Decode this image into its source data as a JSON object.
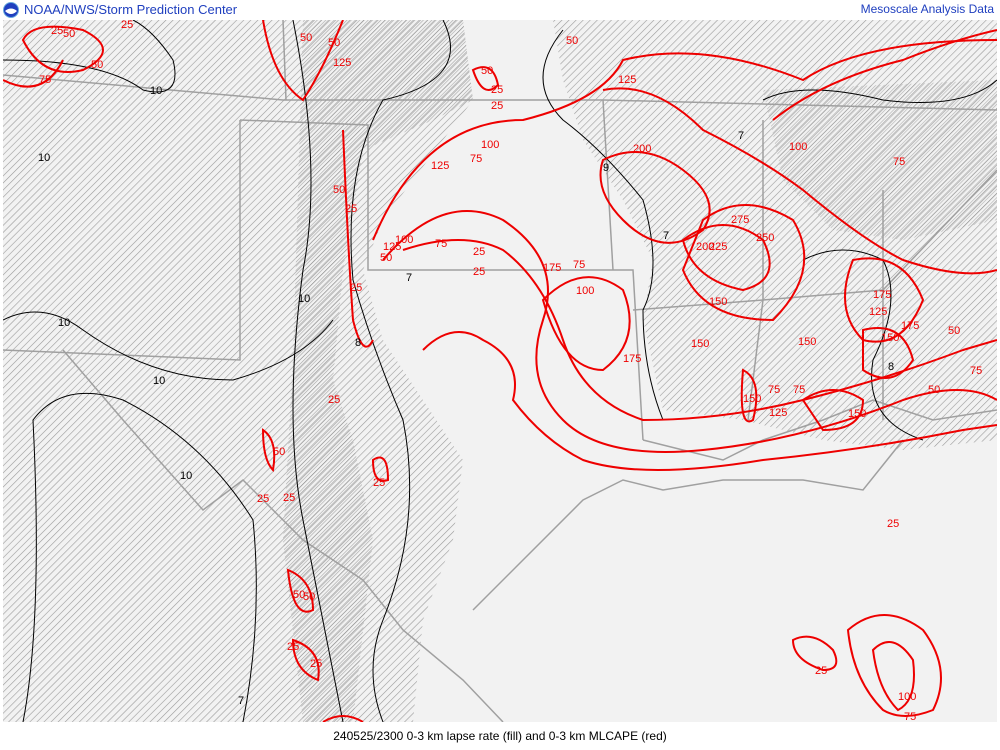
{
  "header": {
    "title": "NOAA/NWS/Storm Prediction Center",
    "right_link": "Mesoscale Analysis Data",
    "logo_icon": "noaa-logo-icon"
  },
  "footer": {
    "caption": "240525/2300 0-3 km lapse rate (fill) and 0-3 km MLCAPE (red)"
  },
  "colors": {
    "cape_contour": "#ee0000",
    "lapse_contour": "#000000",
    "hatch": "#9a9a9a",
    "background": "#f2f2f2",
    "borders": "#a0a0a0",
    "header_text": "#1f3fbf"
  },
  "map": {
    "lapse_labels": [
      "10",
      "10",
      "10",
      "10",
      "10",
      "10",
      "7",
      "7",
      "7",
      "7",
      "9",
      "8",
      "8"
    ],
    "cape_labels": [
      "25",
      "50",
      "75",
      "50",
      "50",
      "25",
      "125",
      "50",
      "50",
      "25",
      "50",
      "125",
      "100",
      "75",
      "50",
      "125",
      "100",
      "75",
      "25",
      "125",
      "200",
      "100",
      "75",
      "50",
      "175",
      "200",
      "225",
      "275",
      "250",
      "150",
      "150",
      "125",
      "175",
      "150",
      "175",
      "50",
      "75",
      "150",
      "75",
      "125",
      "150",
      "100",
      "75",
      "175",
      "50",
      "25",
      "25",
      "25",
      "25",
      "50",
      "25",
      "25",
      "25",
      "50",
      "50",
      "150",
      "25",
      "75",
      "25",
      "100",
      "75",
      "25",
      "25",
      "25"
    ]
  }
}
